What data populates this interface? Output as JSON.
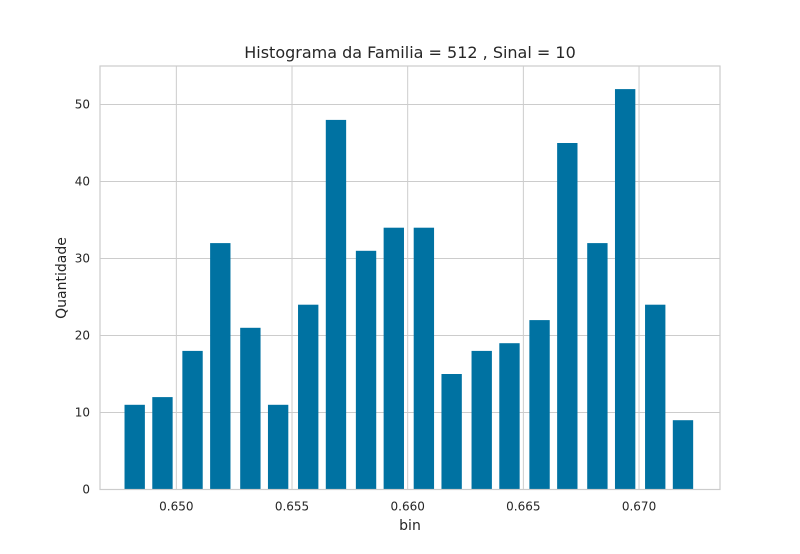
{
  "chart_data": {
    "type": "bar",
    "title": "Histograma da Familia = 512 , Sinal = 10",
    "xlabel": "bin",
    "ylabel": "Quantidade",
    "x": [
      0.6482,
      0.6494,
      0.6507,
      0.6519,
      0.6532,
      0.6544,
      0.6557,
      0.6569,
      0.6582,
      0.6594,
      0.6607,
      0.6619,
      0.6632,
      0.6644,
      0.6657,
      0.6669,
      0.6682,
      0.6694,
      0.6707,
      0.6719
    ],
    "values": [
      11,
      12,
      18,
      32,
      21,
      11,
      24,
      48,
      31,
      34,
      34,
      15,
      18,
      19,
      22,
      45,
      32,
      52,
      24,
      9
    ],
    "bar_width": 0.00088,
    "xlim": [
      0.6467,
      0.6735
    ],
    "ylim": [
      0,
      55
    ],
    "xticks": [
      0.65,
      0.655,
      0.66,
      0.665,
      0.67
    ],
    "xtick_labels": [
      "0.650",
      "0.655",
      "0.660",
      "0.665",
      "0.670"
    ],
    "yticks": [
      0,
      10,
      20,
      30,
      40,
      50
    ],
    "ytick_labels": [
      "0",
      "10",
      "20",
      "30",
      "40",
      "50"
    ],
    "bar_color": "#0072a2",
    "grid": true,
    "legend": "none"
  }
}
